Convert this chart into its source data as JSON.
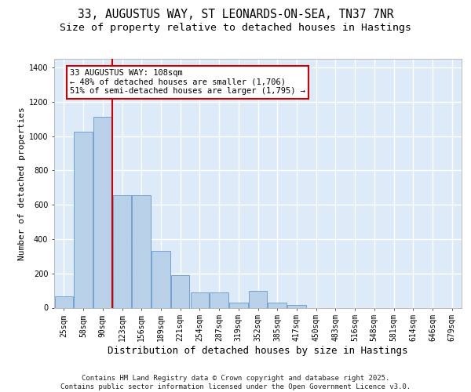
{
  "title1": "33, AUGUSTUS WAY, ST LEONARDS-ON-SEA, TN37 7NR",
  "title2": "Size of property relative to detached houses in Hastings",
  "xlabel": "Distribution of detached houses by size in Hastings",
  "ylabel": "Number of detached properties",
  "categories": [
    "25sqm",
    "58sqm",
    "90sqm",
    "123sqm",
    "156sqm",
    "189sqm",
    "221sqm",
    "254sqm",
    "287sqm",
    "319sqm",
    "352sqm",
    "385sqm",
    "417sqm",
    "450sqm",
    "483sqm",
    "516sqm",
    "548sqm",
    "581sqm",
    "614sqm",
    "646sqm",
    "679sqm"
  ],
  "values": [
    65,
    1025,
    1110,
    655,
    655,
    330,
    190,
    90,
    90,
    30,
    100,
    30,
    15,
    0,
    0,
    0,
    0,
    0,
    0,
    0,
    0
  ],
  "bar_color": "#b8d0e8",
  "bar_edge_color": "#6699cc",
  "background_color": "#ddeaf8",
  "grid_color": "#ffffff",
  "red_line_x": 2.5,
  "annotation_text": "33 AUGUSTUS WAY: 108sqm\n← 48% of detached houses are smaller (1,706)\n51% of semi-detached houses are larger (1,795) →",
  "annotation_box_facecolor": "#ffffff",
  "annotation_box_edgecolor": "#cc0000",
  "ylim": [
    0,
    1450
  ],
  "yticks": [
    0,
    200,
    400,
    600,
    800,
    1000,
    1200,
    1400
  ],
  "footer_line1": "Contains HM Land Registry data © Crown copyright and database right 2025.",
  "footer_line2": "Contains public sector information licensed under the Open Government Licence v3.0.",
  "title_fontsize": 10.5,
  "subtitle_fontsize": 9.5,
  "xlabel_fontsize": 9,
  "ylabel_fontsize": 8,
  "tick_fontsize": 7,
  "annotation_fontsize": 7.5,
  "footer_fontsize": 6.5
}
